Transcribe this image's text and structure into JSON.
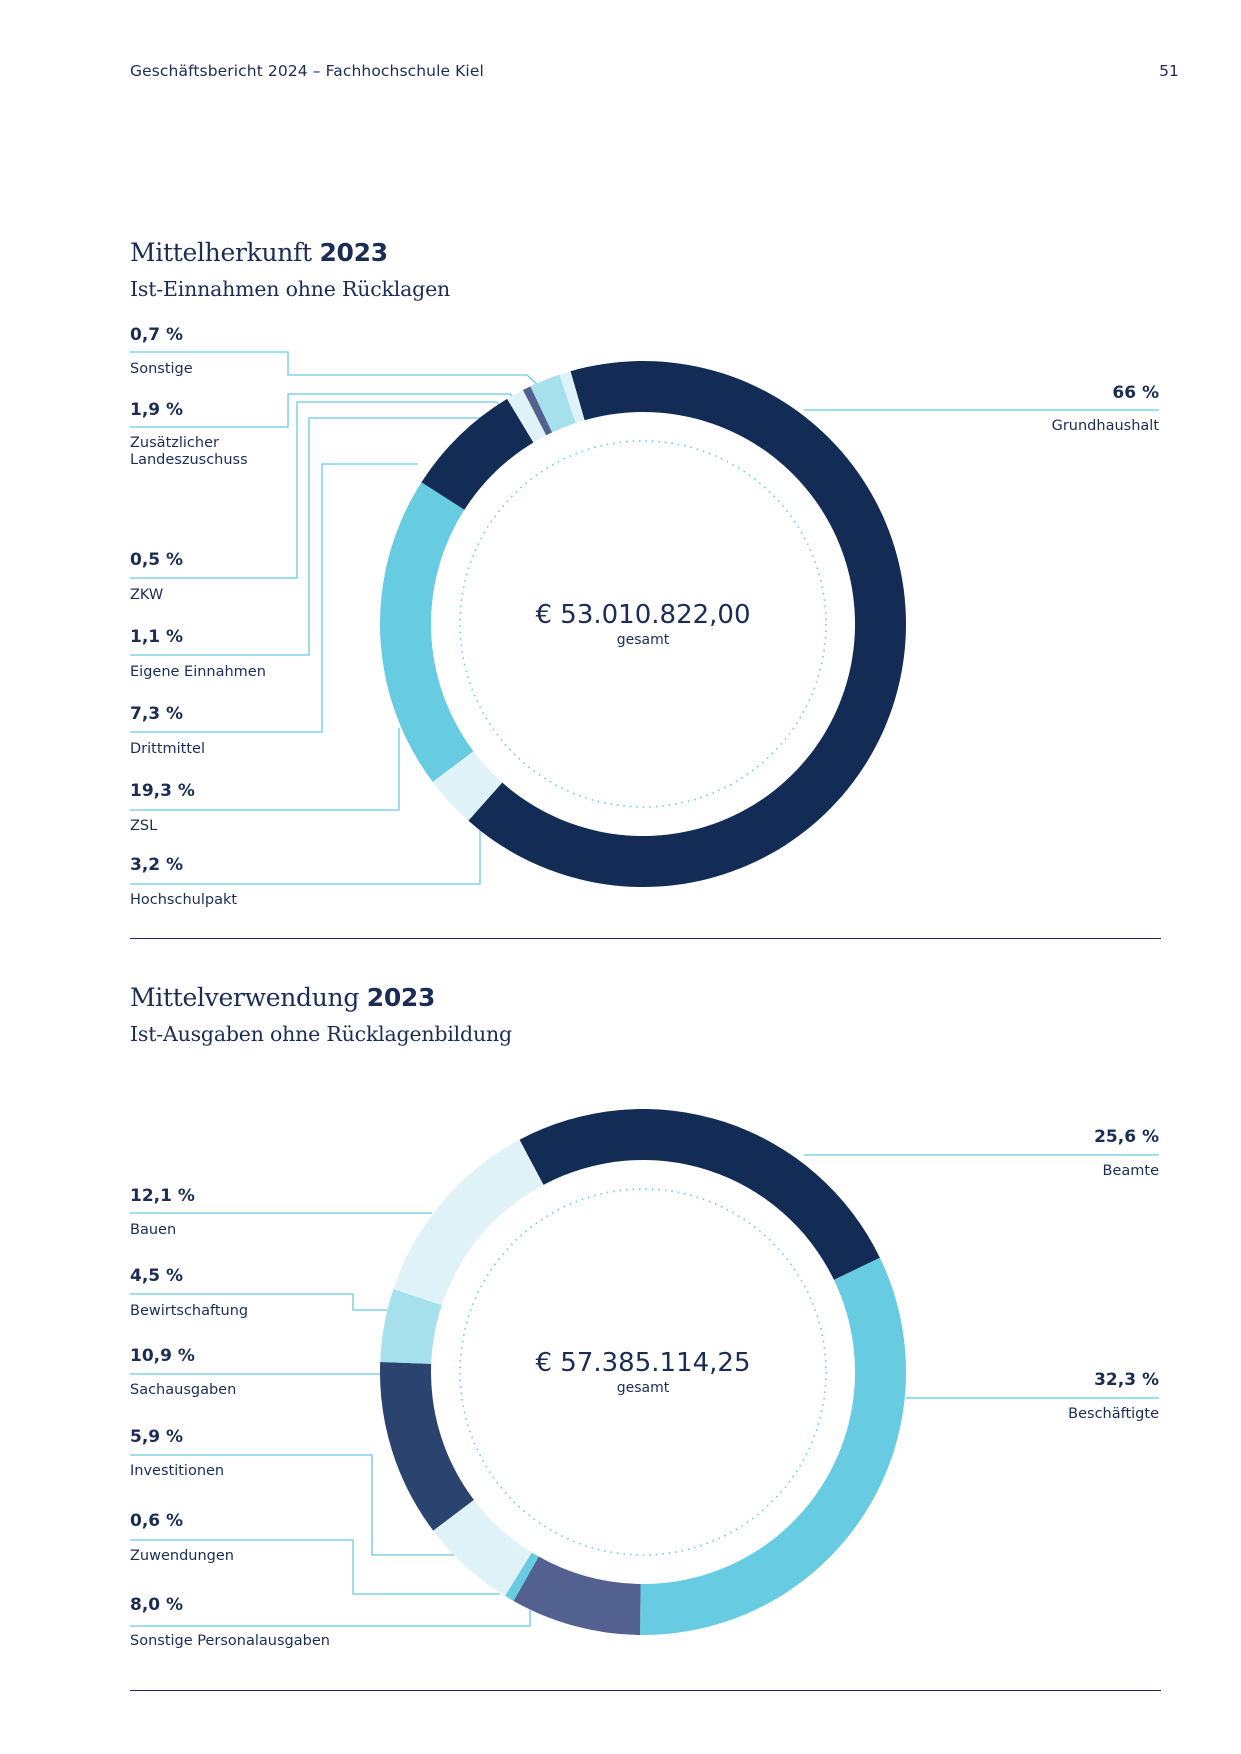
{
  "header": {
    "title": "Geschäftsbericht 2024 – Fachhochschule Kiel",
    "page_number": "51"
  },
  "colors": {
    "navy": "#122c55",
    "mid_navy": "#2b436f",
    "slate": "#52618f",
    "cyan": "#67cbe1",
    "light_cyan": "#a6e0ec",
    "pale_cyan": "#def2f7",
    "leader": "#67cbe1"
  },
  "chart_data": [
    {
      "type": "pie",
      "title": "Mittelherkunft",
      "title_year": "2023",
      "subtitle": "Ist-Einnahmen ohne Rücklagen",
      "total": "€ 53.010.822,00",
      "total_label": "gesamt",
      "slices": [
        {
          "label": "Grundhaushalt",
          "value": 66,
          "pct_text": "66 %",
          "color": "#122c55"
        },
        {
          "label": "Hochschulpakt",
          "value": 3.2,
          "pct_text": "3,2 %",
          "color": "#def2f7"
        },
        {
          "label": "ZSL",
          "value": 19.3,
          "pct_text": "19,3 %",
          "color": "#67cbe1"
        },
        {
          "label": "Drittmittel",
          "value": 7.3,
          "pct_text": "7,3 %",
          "color": "#122c55"
        },
        {
          "label": "Eigene Einnahmen",
          "value": 1.1,
          "pct_text": "1,1 %",
          "color": "#def2f7"
        },
        {
          "label": "ZKW",
          "value": 0.5,
          "pct_text": "0,5 %",
          "color": "#52618f"
        },
        {
          "label": "Zusätzlicher Landeszuschuss",
          "value": 1.9,
          "pct_text": "1,9 %",
          "color": "#a6e0ec"
        },
        {
          "label": "Sonstige",
          "value": 0.7,
          "pct_text": "0,7 %",
          "color": "#def2f7"
        }
      ]
    },
    {
      "type": "pie",
      "title": "Mittelverwendung",
      "title_year": "2023",
      "subtitle": "Ist-Ausgaben ohne Rücklagenbildung",
      "total": "€ 57.385.114,25",
      "total_label": "gesamt",
      "slices": [
        {
          "label": "Beamte",
          "value": 25.6,
          "pct_text": "25,6 %",
          "color": "#122c55"
        },
        {
          "label": "Beschäftigte",
          "value": 32.3,
          "pct_text": "32,3 %",
          "color": "#67cbe1"
        },
        {
          "label": "Sonstige Personalausgaben",
          "value": 8.0,
          "pct_text": "8,0 %",
          "color": "#52618f"
        },
        {
          "label": "Zuwendungen",
          "value": 0.6,
          "pct_text": "0,6 %",
          "color": "#67cbe1"
        },
        {
          "label": "Investitionen",
          "value": 5.9,
          "pct_text": "5,9 %",
          "color": "#def2f7"
        },
        {
          "label": "Sachausgaben",
          "value": 10.9,
          "pct_text": "10,9 %",
          "color": "#2b436f"
        },
        {
          "label": "Bewirtschaftung",
          "value": 4.5,
          "pct_text": "4,5 %",
          "color": "#a6e0ec"
        },
        {
          "label": "Bauen",
          "value": 12.1,
          "pct_text": "12,1 %",
          "color": "#def2f7"
        }
      ]
    }
  ]
}
